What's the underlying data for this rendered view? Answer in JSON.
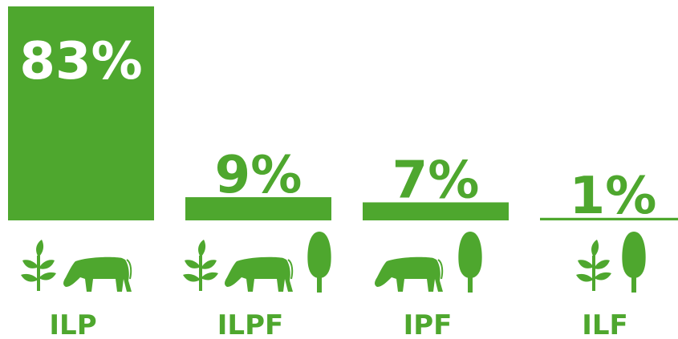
{
  "chart_data": {
    "type": "bar",
    "categories": [
      "ILP",
      "ILPF",
      "IPF",
      "ILF"
    ],
    "values": [
      83,
      9,
      7,
      1
    ],
    "value_labels": [
      "83%",
      "9%",
      "7%",
      "1%"
    ],
    "color": "#4ea72e"
  }
}
